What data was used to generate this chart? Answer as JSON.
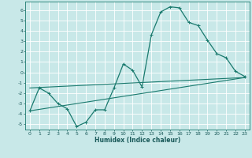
{
  "bg_color": "#c8e8e8",
  "grid_color": "#ffffff",
  "line_color": "#1a7a6e",
  "xlabel": "Humidex (Indice chaleur)",
  "xlim_min": -0.5,
  "xlim_max": 23.5,
  "ylim_min": -5.5,
  "ylim_max": 6.8,
  "xticks": [
    0,
    1,
    2,
    3,
    4,
    5,
    6,
    7,
    8,
    9,
    10,
    11,
    12,
    13,
    14,
    15,
    16,
    17,
    18,
    19,
    20,
    21,
    22,
    23
  ],
  "yticks": [
    -5,
    -4,
    -3,
    -2,
    -1,
    0,
    1,
    2,
    3,
    4,
    5,
    6
  ],
  "line1_x": [
    0,
    1,
    2,
    3,
    4,
    5,
    6,
    7,
    8,
    9,
    10,
    11,
    12,
    13,
    14,
    15,
    16,
    17,
    18,
    19,
    20,
    21,
    22,
    23
  ],
  "line1_y": [
    -3.7,
    -1.5,
    -2.0,
    -3.0,
    -3.5,
    -5.2,
    -4.8,
    -3.6,
    -3.6,
    -1.5,
    0.8,
    0.2,
    -1.4,
    3.6,
    5.8,
    6.3,
    6.2,
    4.8,
    4.5,
    3.1,
    1.8,
    1.4,
    0.1,
    -0.4
  ],
  "trend1_x0": 0,
  "trend1_x1": 23,
  "trend1_y0": -3.7,
  "trend1_y1": -0.5,
  "trend2_x0": 0,
  "trend2_x1": 23,
  "trend2_y0": -1.5,
  "trend2_y1": -0.5,
  "xlabel_fontsize": 5.5,
  "tick_fontsize": 4.5
}
